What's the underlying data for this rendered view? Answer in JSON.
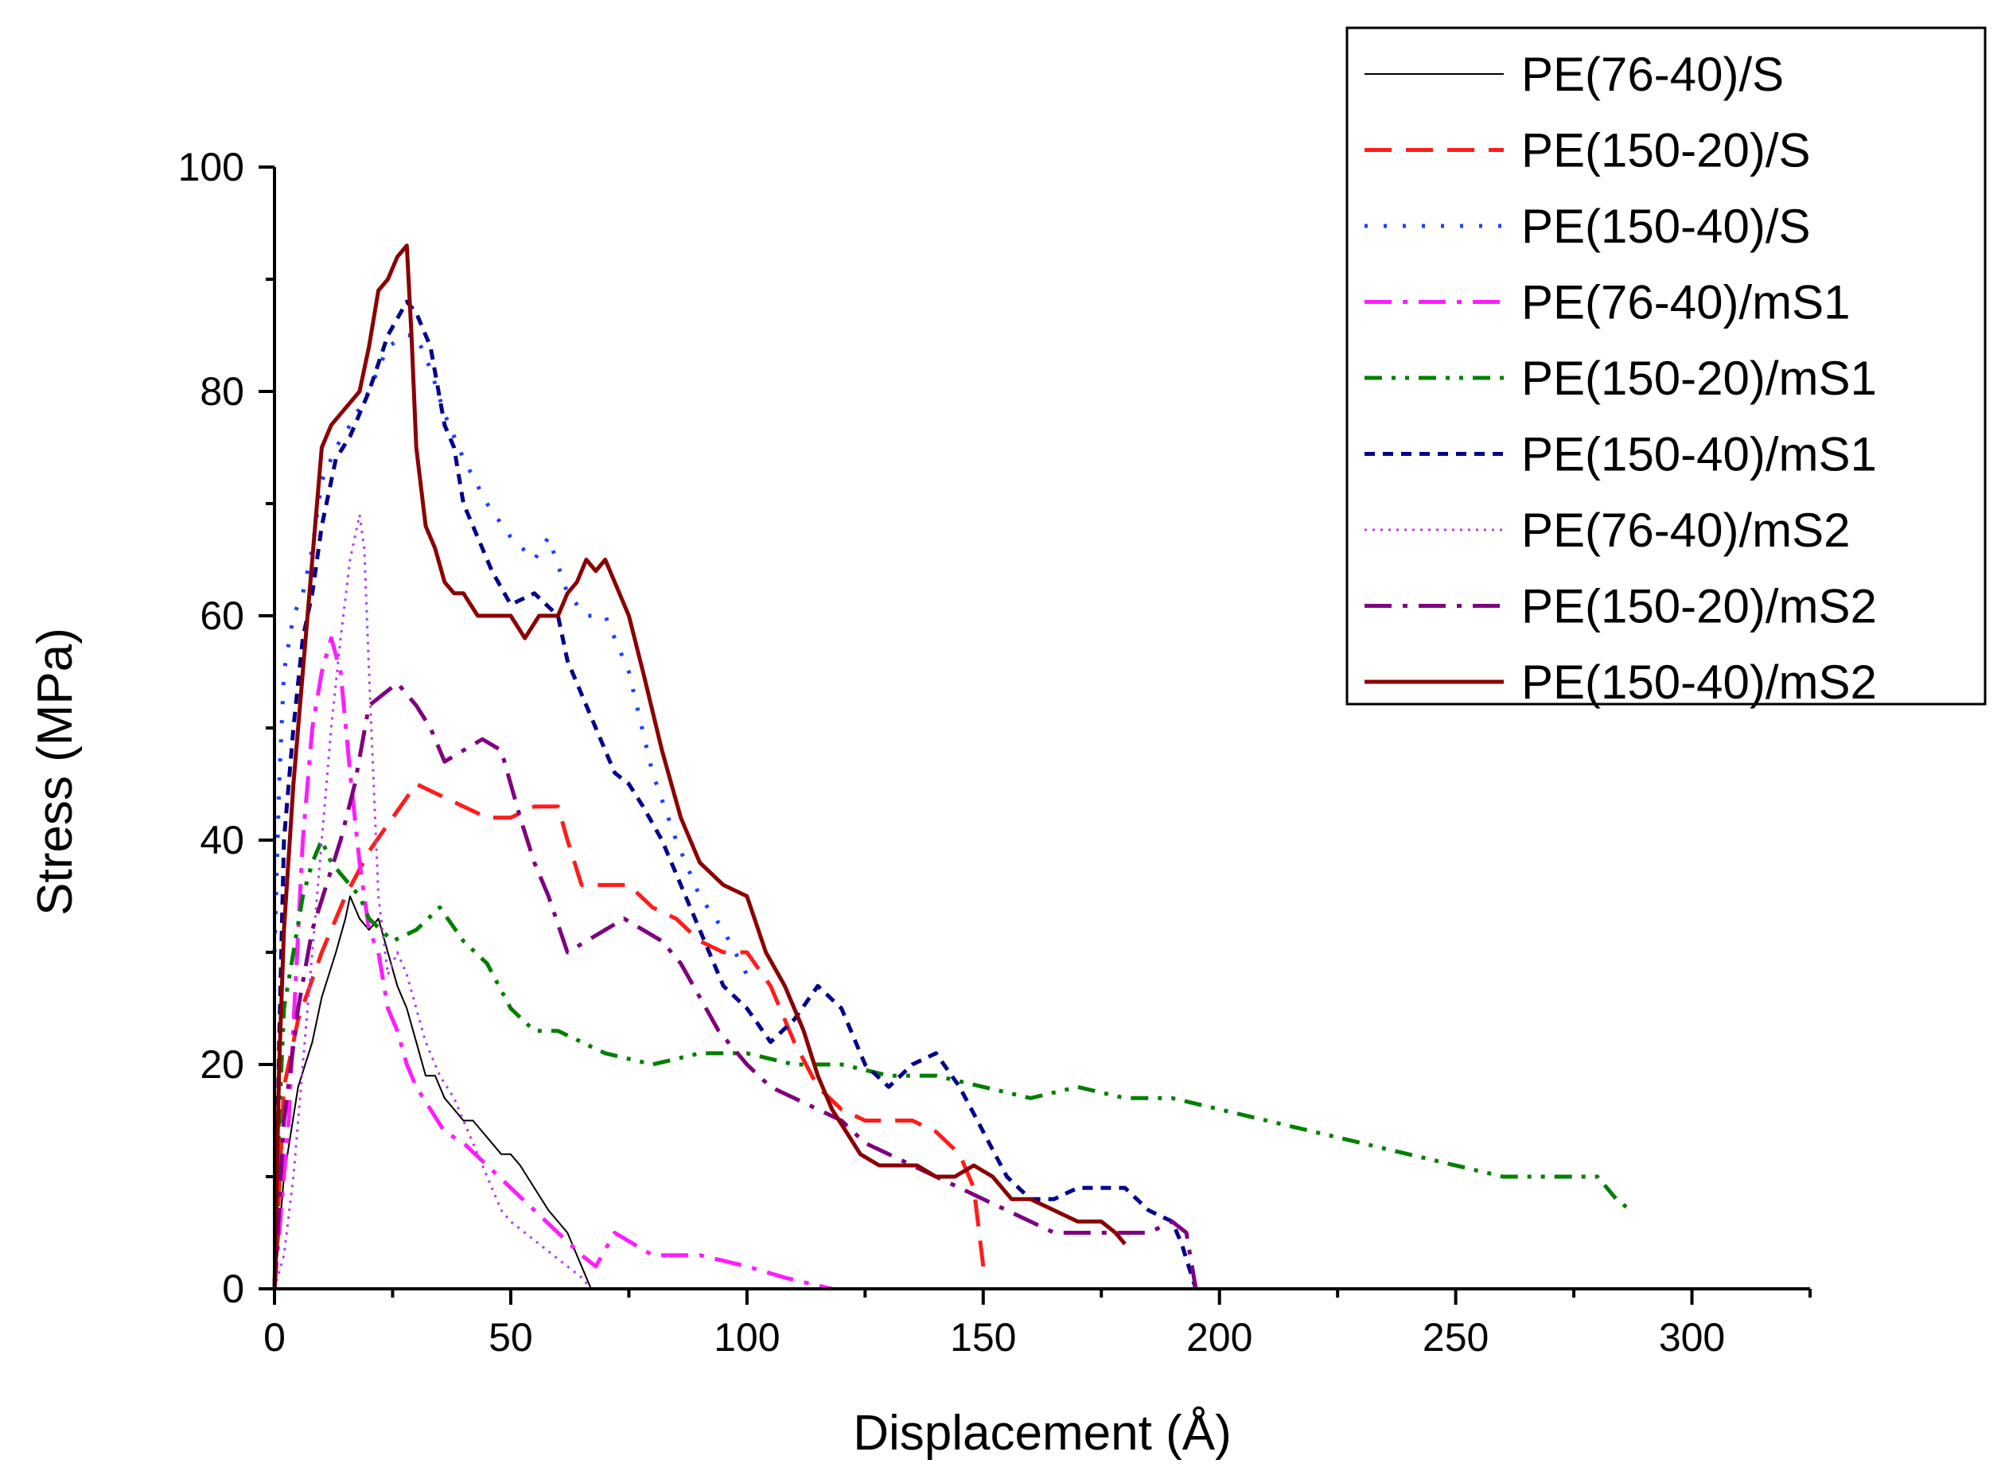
{
  "chart_data": {
    "type": "line",
    "title": "",
    "xlabel": "Displacement (Å)",
    "ylabel": "Stress (MPa)",
    "xlim": [
      0,
      325
    ],
    "ylim": [
      0,
      100
    ],
    "xticks": [
      0,
      50,
      100,
      150,
      200,
      250,
      300
    ],
    "yticks": [
      0,
      20,
      40,
      60,
      80,
      100
    ],
    "grid": false,
    "legend_position": "top-right",
    "series": [
      {
        "name": "PE(76-40)/S",
        "color": "#000000",
        "dash": "solid",
        "width": 2,
        "x": [
          0,
          2,
          5,
          8,
          10,
          13,
          15,
          16,
          18,
          20,
          22,
          24,
          26,
          28,
          30,
          32,
          34,
          36,
          38,
          40,
          42,
          44,
          46,
          48,
          50,
          52,
          55,
          58,
          62,
          65,
          67
        ],
        "y": [
          0,
          10,
          18,
          22,
          26,
          30,
          33,
          35,
          33,
          32,
          33,
          30,
          27,
          25,
          22,
          19,
          19,
          17,
          16,
          15,
          15,
          14,
          13,
          12,
          12,
          11,
          9,
          7,
          5,
          2,
          0
        ]
      },
      {
        "name": "PE(150-20)/S",
        "color": "#ff1c1c",
        "dash": "long-dash",
        "width": 5,
        "x": [
          0,
          2,
          5,
          10,
          15,
          20,
          25,
          30,
          35,
          40,
          45,
          50,
          55,
          60,
          62,
          65,
          70,
          75,
          80,
          85,
          90,
          95,
          100,
          105,
          110,
          115,
          120,
          125,
          130,
          135,
          140,
          145,
          148,
          150
        ],
        "y": [
          0,
          18,
          24,
          30,
          35,
          39,
          42,
          45,
          44,
          43,
          42,
          42,
          43,
          43,
          40,
          36,
          36,
          36,
          34,
          33,
          31,
          30,
          30,
          27,
          22,
          18,
          16,
          15,
          15,
          15,
          14,
          12,
          9,
          2
        ]
      },
      {
        "name": "PE(150-40)/S",
        "color": "#1f3fff",
        "dash": "dot",
        "width": 5,
        "x": [
          0,
          1,
          2,
          4,
          6,
          8,
          10,
          13,
          16,
          20,
          24,
          28,
          30,
          33,
          36,
          40,
          45,
          50,
          55,
          58,
          62,
          66,
          70,
          75,
          80,
          85,
          90,
          95,
          100
        ],
        "y": [
          30,
          45,
          55,
          60,
          62,
          66,
          72,
          75,
          77,
          80,
          84,
          85,
          85,
          82,
          78,
          74,
          70,
          67,
          65,
          67,
          62,
          60,
          60,
          55,
          46,
          40,
          35,
          32,
          28
        ]
      },
      {
        "name": "PE(76-40)/mS1",
        "color": "#ff1cff",
        "dash": "dash-dot",
        "width": 5,
        "x": [
          0,
          3,
          6,
          8,
          10,
          12,
          14,
          16,
          18,
          20,
          22,
          24,
          26,
          28,
          30,
          33,
          36,
          40,
          45,
          50,
          55,
          60,
          65,
          68,
          72,
          76,
          80,
          90,
          100,
          108,
          113,
          118
        ],
        "y": [
          0,
          15,
          40,
          50,
          55,
          58,
          55,
          46,
          38,
          32,
          30,
          25,
          23,
          20,
          18,
          16,
          14,
          13,
          11,
          9,
          7,
          5,
          3,
          2,
          5,
          4,
          3,
          3,
          2,
          1,
          0.5,
          0
        ]
      },
      {
        "name": "PE(150-20)/mS1",
        "color": "#007f00",
        "dash": "dash-dot-dot",
        "width": 5,
        "x": [
          0,
          1,
          2,
          4,
          6,
          8,
          10,
          12,
          14,
          16,
          18,
          20,
          25,
          30,
          35,
          40,
          45,
          50,
          55,
          60,
          65,
          70,
          80,
          90,
          100,
          110,
          120,
          130,
          140,
          150,
          160,
          170,
          180,
          190,
          200,
          210,
          220,
          230,
          240,
          250,
          260,
          270,
          280,
          284,
          287
        ],
        "y": [
          0,
          15,
          25,
          30,
          35,
          38,
          40,
          38,
          37,
          36,
          35,
          33,
          31,
          32,
          34,
          31,
          29,
          25,
          23,
          23,
          22,
          21,
          20,
          21,
          21,
          20,
          20,
          19,
          19,
          18,
          17,
          18,
          17,
          17,
          16,
          15,
          14,
          13,
          12,
          11,
          10,
          10,
          10,
          8,
          7
        ]
      },
      {
        "name": "PE(150-40)/mS1",
        "color": "#00008b",
        "dash": "short-dash",
        "width": 5,
        "x": [
          0,
          1,
          2,
          4,
          6,
          8,
          10,
          13,
          16,
          20,
          24,
          28,
          30,
          33,
          36,
          38,
          40,
          43,
          46,
          50,
          55,
          60,
          62,
          65,
          68,
          70,
          72,
          75,
          78,
          82,
          86,
          90,
          95,
          100,
          105,
          110,
          115,
          120,
          125,
          130,
          135,
          140,
          145,
          150,
          155,
          160,
          165,
          170,
          175,
          180,
          185,
          190,
          192,
          195
        ],
        "y": [
          0,
          22,
          40,
          50,
          58,
          62,
          68,
          74,
          76,
          80,
          85,
          88,
          87,
          84,
          77,
          75,
          70,
          67,
          64,
          61,
          62,
          60,
          56,
          53,
          50,
          48,
          46,
          45,
          43,
          40,
          36,
          32,
          27,
          25,
          22,
          24,
          27,
          25,
          20,
          18,
          20,
          21,
          18,
          14,
          10,
          8,
          8,
          9,
          9,
          9,
          7,
          6,
          4,
          0
        ]
      },
      {
        "name": "PE(76-40)/mS2",
        "color": "#b23cf0",
        "dash": "fine-dot",
        "width": 3,
        "x": [
          0,
          2,
          4,
          6,
          8,
          10,
          12,
          14,
          16,
          18,
          19,
          20,
          22,
          24,
          26,
          28,
          30,
          32,
          35,
          38,
          40,
          43,
          46,
          48,
          50,
          53,
          56,
          59,
          62,
          65,
          67
        ],
        "y": [
          0,
          3,
          10,
          20,
          30,
          40,
          50,
          58,
          65,
          69,
          66,
          55,
          35,
          28,
          30,
          28,
          25,
          22,
          19,
          17,
          15,
          12,
          9,
          7,
          6,
          5,
          4,
          3,
          2,
          1,
          0
        ]
      },
      {
        "name": "PE(150-20)/mS2",
        "color": "#7f007f",
        "dash": "dash-dot",
        "width": 5,
        "x": [
          0,
          2,
          5,
          8,
          11,
          14,
          17,
          20,
          23,
          26,
          30,
          33,
          36,
          40,
          44,
          48,
          52,
          55,
          58,
          62,
          66,
          70,
          74,
          78,
          82,
          86,
          90,
          94,
          100,
          105,
          110,
          115,
          120,
          125,
          130,
          135,
          140,
          145,
          150,
          155,
          160,
          165,
          170,
          175,
          180,
          185,
          190,
          193,
          195
        ],
        "y": [
          0,
          15,
          25,
          32,
          36,
          40,
          45,
          52,
          53,
          54,
          52,
          50,
          47,
          48,
          49,
          48,
          42,
          38,
          35,
          30,
          31,
          32,
          33,
          32,
          31,
          29,
          26,
          23,
          20,
          18,
          17,
          16,
          15,
          13,
          12,
          11,
          10,
          9,
          8,
          7,
          6,
          5,
          5,
          5,
          5,
          5,
          6,
          5,
          0
        ]
      },
      {
        "name": "PE(150-40)/mS2",
        "color": "#8b0000",
        "dash": "solid",
        "width": 5,
        "x": [
          0,
          1,
          2,
          4,
          6,
          8,
          10,
          12,
          14,
          16,
          18,
          20,
          22,
          24,
          26,
          28,
          29,
          30,
          32,
          34,
          36,
          38,
          40,
          43,
          46,
          50,
          53,
          56,
          58,
          60,
          62,
          64,
          66,
          68,
          70,
          72,
          75,
          78,
          82,
          86,
          90,
          95,
          100,
          104,
          108,
          112,
          115,
          118,
          121,
          124,
          128,
          132,
          136,
          140,
          144,
          148,
          152,
          156,
          160,
          165,
          170,
          175,
          178,
          180
        ],
        "y": [
          0,
          20,
          32,
          45,
          55,
          65,
          75,
          77,
          78,
          79,
          80,
          84,
          89,
          90,
          92,
          93,
          85,
          75,
          68,
          66,
          63,
          62,
          62,
          60,
          60,
          60,
          58,
          60,
          60,
          60,
          62,
          63,
          65,
          64,
          65,
          63,
          60,
          55,
          48,
          42,
          38,
          36,
          35,
          30,
          27,
          23,
          19,
          16,
          14,
          12,
          11,
          11,
          11,
          10,
          10,
          11,
          10,
          8,
          8,
          7,
          6,
          6,
          5,
          4
        ]
      }
    ]
  }
}
